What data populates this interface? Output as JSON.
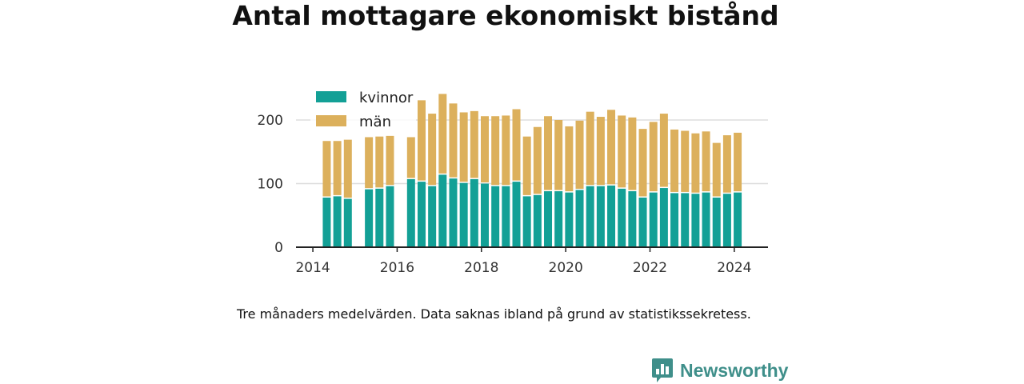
{
  "title": "Antal mottagare ekonomiskt bistånd",
  "note": "Tre månaders medelvärden. Data saknas ibland på grund av statistikssekretess.",
  "brand": "Newsworthy",
  "colors": {
    "kvinnor": "#13a096",
    "man": "#dcb05c",
    "axis": "#222222",
    "grid": "#dddddd"
  },
  "chart_data": {
    "type": "bar",
    "stacked": true,
    "xlim": [
      2013.6,
      2024.8
    ],
    "ylim": [
      0,
      250
    ],
    "x_ticks": [
      "2014",
      "2016",
      "2018",
      "2020",
      "2022",
      "2024"
    ],
    "x_tick_values": [
      2014,
      2016,
      2018,
      2020,
      2022,
      2024
    ],
    "y_ticks": [
      "0",
      "100",
      "200"
    ],
    "y_tick_values": [
      0,
      100,
      200
    ],
    "legend": [
      "kvinnor",
      "män"
    ],
    "legend_position": "top-left",
    "grid": "horizontal",
    "x": [
      2014.33,
      2014.58,
      2014.83,
      2015.33,
      2015.58,
      2015.83,
      2016.33,
      2016.58,
      2016.83,
      2017.08,
      2017.33,
      2017.58,
      2017.83,
      2018.08,
      2018.33,
      2018.58,
      2018.83,
      2019.08,
      2019.33,
      2019.58,
      2019.83,
      2020.08,
      2020.33,
      2020.58,
      2020.83,
      2021.08,
      2021.33,
      2021.58,
      2021.83,
      2022.08,
      2022.33,
      2022.58,
      2022.83,
      2023.08,
      2023.33,
      2023.58,
      2023.83,
      2024.08
    ],
    "series": [
      {
        "name": "kvinnor",
        "values": [
          78,
          80,
          76,
          91,
          92,
          96,
          107,
          103,
          96,
          114,
          108,
          101,
          107,
          100,
          96,
          96,
          103,
          80,
          82,
          88,
          88,
          86,
          90,
          96,
          96,
          97,
          92,
          88,
          78,
          86,
          93,
          85,
          85,
          84,
          86,
          78,
          84,
          86
        ]
      },
      {
        "name": "män",
        "values": [
          89,
          87,
          93,
          82,
          82,
          79,
          66,
          128,
          114,
          127,
          118,
          111,
          107,
          106,
          110,
          111,
          114,
          94,
          107,
          118,
          112,
          104,
          109,
          117,
          109,
          119,
          115,
          116,
          108,
          111,
          117,
          100,
          98,
          95,
          96,
          86,
          92,
          94
        ]
      }
    ]
  }
}
